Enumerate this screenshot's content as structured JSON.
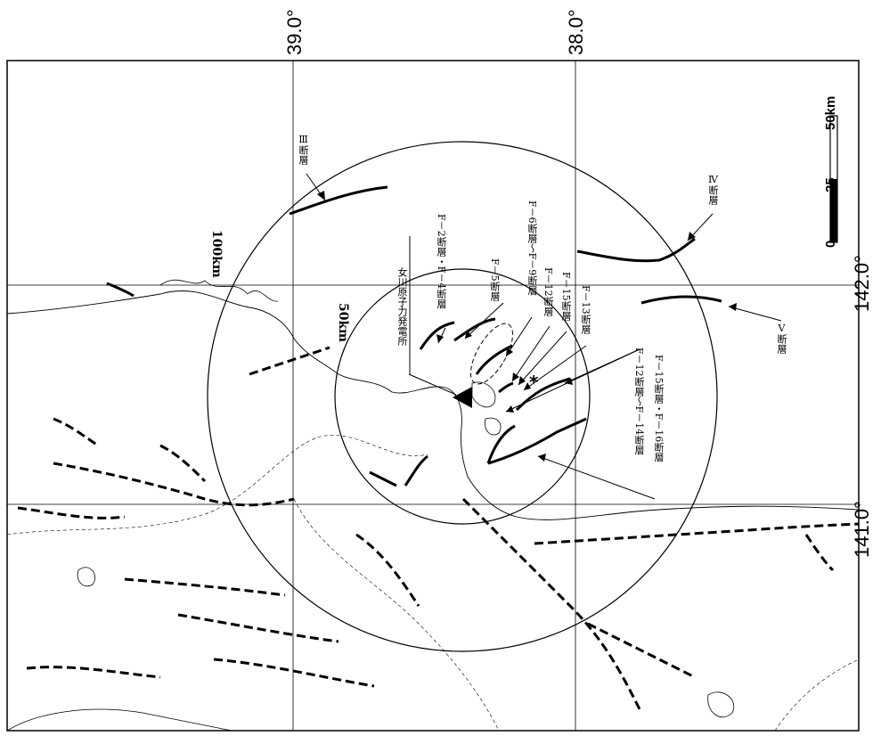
{
  "grid": {
    "lat_labels": [
      "39.0°",
      "38.0°"
    ],
    "lon_labels": [
      "142.0°",
      "141.0°"
    ]
  },
  "rings": {
    "inner_label": "50km",
    "outer_label": "100km"
  },
  "site": {
    "label": "女川原子力発電所"
  },
  "faults": {
    "f2_f4": "F－2断層・F－4断層",
    "f5": "F－5断層",
    "f6_f9": "F－6断層～F－9断層",
    "f12": "F－12断層",
    "f15": "F－15断層",
    "f13": "F－13断層",
    "f12_f14": "F－12断層～F－14断層",
    "f15_f16": "F－15断層・F－16断層",
    "fault_iii": "Ⅲ断層",
    "fault_iv": "Ⅳ断層",
    "fault_v": "Ⅴ断層"
  },
  "scale": {
    "zero": "0",
    "mid": "25",
    "max": "50km"
  }
}
